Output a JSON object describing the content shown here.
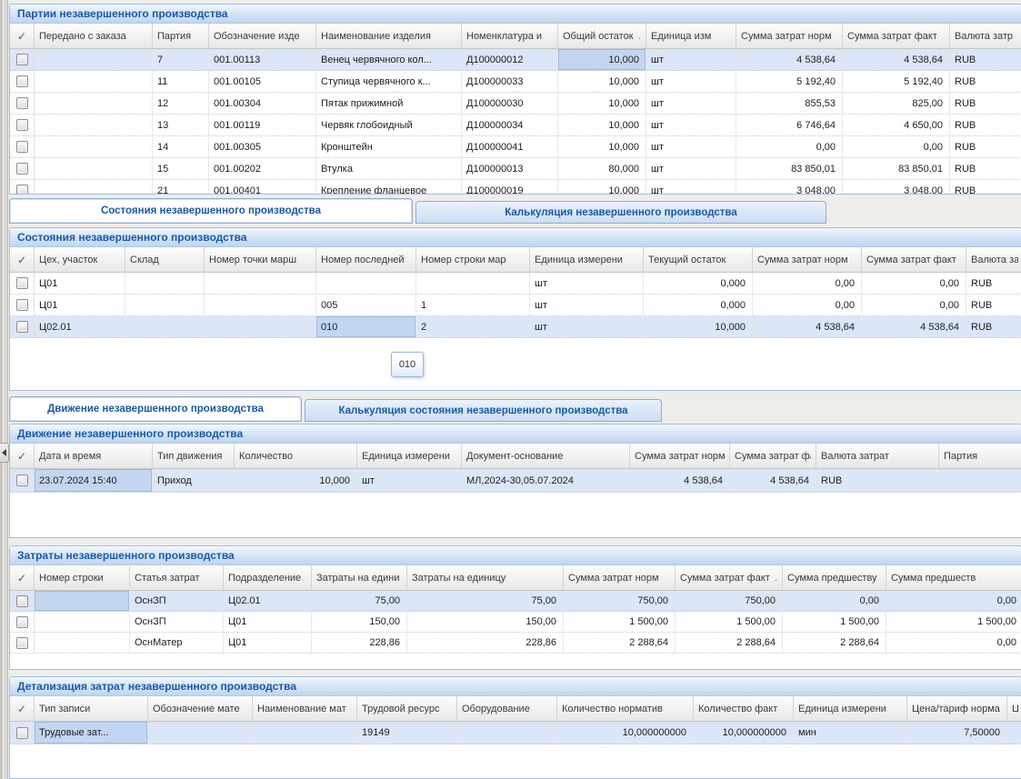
{
  "ui": {
    "check_glyph": "✓",
    "sort_dot": "."
  },
  "colors": {
    "accent": "#1859a8",
    "selection-row": "#dbe6f6",
    "focus-cell": "#c3d6f1",
    "panel-border": "#a3bede"
  },
  "tabstrips": {
    "states": {
      "tabs": [
        {
          "label": "Состояния незавершенного производства",
          "active": true
        },
        {
          "label": "Калькуляция незавершенного производства",
          "active": false
        }
      ]
    },
    "movements": {
      "tabs": [
        {
          "label": "Движение незавершенного производства",
          "active": true
        },
        {
          "label": "Калькуляция состояния незавершенного производства",
          "active": false
        }
      ]
    }
  },
  "panels": {
    "batches": {
      "title": "Партии незавершенного производства",
      "table": {
        "columns": [
          {
            "t": "Передано с заказа"
          },
          {
            "t": "Партия"
          },
          {
            "t": "Обозначение изде"
          },
          {
            "t": "Наименование изделия"
          },
          {
            "t": "Номенклатура и"
          },
          {
            "t": "Общий остаток",
            "dot": true
          },
          {
            "t": "Единица изм"
          },
          {
            "t": "Сумма затрат норм"
          },
          {
            "t": "Сумма затрат факт"
          },
          {
            "t": "Валюта затр"
          }
        ],
        "rows": [
          {
            "selected": true,
            "focus": 5,
            "cells": [
              "",
              "7",
              "001.00113",
              "Венец червячного кол...",
              "Д100000012",
              "10,000",
              "шт",
              "4 538,64",
              "4 538,64",
              "RUB"
            ]
          },
          {
            "cells": [
              "",
              "11",
              "001.00105",
              "Ступица червячного к...",
              "Д100000033",
              "10,000",
              "шт",
              "5 192,40",
              "5 192,40",
              "RUB"
            ]
          },
          {
            "cells": [
              "",
              "12",
              "001.00304",
              "Пятак прижимной",
              "Д100000030",
              "10,000",
              "шт",
              "855,53",
              "825,00",
              "RUB"
            ]
          },
          {
            "cells": [
              "",
              "13",
              "001.00119",
              "Червяк глобоидный",
              "Д100000034",
              "10,000",
              "шт",
              "6 746,64",
              "4 650,00",
              "RUB"
            ]
          },
          {
            "cells": [
              "",
              "14",
              "001.00305",
              "Кронштейн",
              "Д100000041",
              "10,000",
              "шт",
              "0,00",
              "0,00",
              "RUB"
            ]
          },
          {
            "cells": [
              "",
              "15",
              "001.00202",
              "Втулка",
              "Д100000013",
              "80,000",
              "шт",
              "83 850,01",
              "83 850,01",
              "RUB"
            ]
          },
          {
            "cells": [
              "",
              "21",
              "001.00401",
              "Крепление фланцевое",
              "Д100000019",
              "10,000",
              "шт",
              "3 048,00",
              "3 048,00",
              "RUB"
            ]
          }
        ]
      }
    },
    "states": {
      "title": "Состояния незавершенного производства",
      "tooltip": "010",
      "table": {
        "columns": [
          {
            "t": "Цех, участок"
          },
          {
            "t": "Склад"
          },
          {
            "t": "Номер точки марш"
          },
          {
            "t": "Номер последней"
          },
          {
            "t": "Номер строки мар"
          },
          {
            "t": "Единица измерени"
          },
          {
            "t": "Текущий остаток"
          },
          {
            "t": "Сумма затрат норм"
          },
          {
            "t": "Сумма затрат факт"
          },
          {
            "t": "Валюта зат"
          }
        ],
        "rows": [
          {
            "cells": [
              "Ц01",
              "",
              "",
              "",
              "",
              "шт",
              "0,000",
              "0,00",
              "0,00",
              "RUB"
            ]
          },
          {
            "cells": [
              "Ц01",
              "",
              "",
              "005",
              "1",
              "шт",
              "0,000",
              "0,00",
              "0,00",
              "RUB"
            ]
          },
          {
            "selected": true,
            "focus": 3,
            "cells": [
              "Ц02.01",
              "",
              "",
              "010",
              "2",
              "шт",
              "10,000",
              "4 538,64",
              "4 538,64",
              "RUB"
            ]
          }
        ]
      }
    },
    "movements": {
      "title": "Движение незавершенного производства",
      "table": {
        "columns": [
          {
            "t": "Дата и время"
          },
          {
            "t": "Тип движения"
          },
          {
            "t": "Количество"
          },
          {
            "t": "Единица измерени"
          },
          {
            "t": "Документ-основание"
          },
          {
            "t": "Сумма затрат норм"
          },
          {
            "t": "Сумма затрат факт"
          },
          {
            "t": "Валюта затрат"
          },
          {
            "t": "Партия"
          }
        ],
        "rows": [
          {
            "selected": true,
            "focus": 0,
            "cells": [
              "23.07.2024 15:40",
              "Приход",
              "10,000",
              "шт",
              "МЛ,2024-30,05.07.2024",
              "4 538,64",
              "4 538,64",
              "RUB",
              ""
            ]
          }
        ]
      }
    },
    "costs": {
      "title": "Затраты незавершенного производства",
      "table": {
        "columns": [
          {
            "t": "Номер строки"
          },
          {
            "t": "Статья затрат"
          },
          {
            "t": "Подразделение"
          },
          {
            "t": "Затраты на едини"
          },
          {
            "t": "Затраты на единицу"
          },
          {
            "t": "Сумма затрат норм"
          },
          {
            "t": "Сумма затрат факт",
            "dot": true
          },
          {
            "t": "Сумма предшеству"
          },
          {
            "t": "Сумма предшеств"
          }
        ],
        "rows": [
          {
            "selected": true,
            "focus": 0,
            "cells": [
              "",
              "ОснЗП",
              "Ц02.01",
              "75,00",
              "75,00",
              "750,00",
              "750,00",
              "0,00",
              "0,00"
            ]
          },
          {
            "cells": [
              "",
              "ОснЗП",
              "Ц01",
              "150,00",
              "150,00",
              "1 500,00",
              "1 500,00",
              "1 500,00",
              "1 500,00"
            ]
          },
          {
            "cells": [
              "",
              "ОснМатер",
              "Ц01",
              "228,86",
              "228,86",
              "2 288,64",
              "2 288,64",
              "2 288,64",
              "0,00"
            ]
          }
        ]
      }
    },
    "details": {
      "title": "Детализация затрат незавершенного производства",
      "table": {
        "columns": [
          {
            "t": "Тип записи"
          },
          {
            "t": "Обозначение мате"
          },
          {
            "t": "Наименование мат"
          },
          {
            "t": "Трудовой ресурс"
          },
          {
            "t": "Оборудование"
          },
          {
            "t": "Количество норматив"
          },
          {
            "t": "Количество факт"
          },
          {
            "t": "Единица измерени"
          },
          {
            "t": "Цена/тариф норма"
          },
          {
            "t": "Ц"
          }
        ],
        "rows": [
          {
            "selected": true,
            "focus": 0,
            "cells": [
              "Трудовые зат...",
              "",
              "",
              "19149",
              "",
              "10,000000000",
              "10,000000000",
              "мин",
              "7,50000",
              ""
            ]
          }
        ]
      }
    }
  }
}
